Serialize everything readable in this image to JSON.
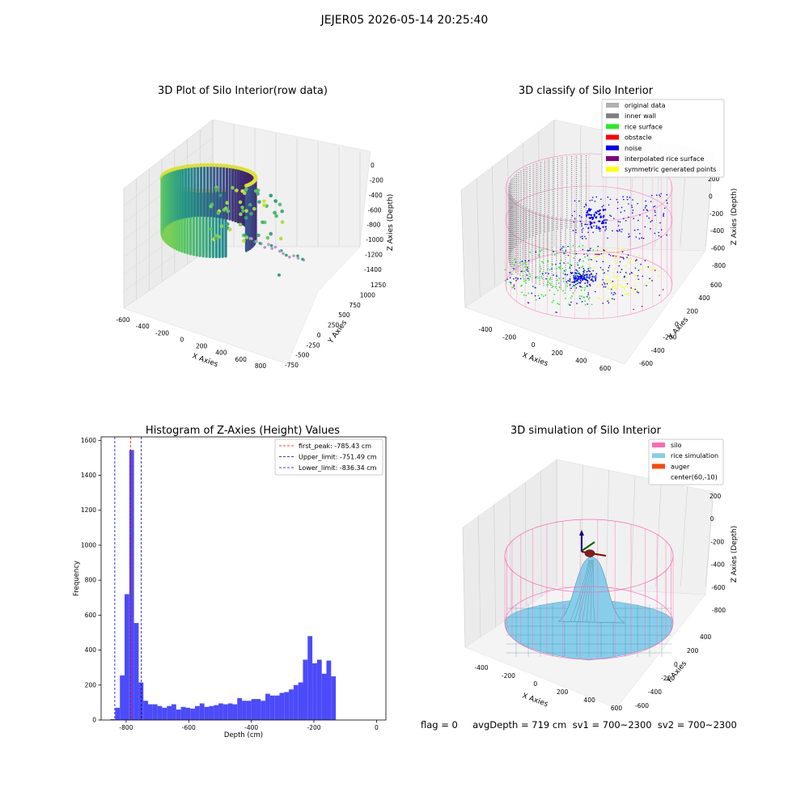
{
  "figure": {
    "suptitle": "JEJER05 2026-05-14 20:25:40",
    "status_line": "flag = 0     avgDepth = 719 cm  sv1 = 700~2300  sv2 = 700~2300"
  },
  "colors": {
    "original": "#b0b0b0",
    "inner_wall": "#808080",
    "rice": "#22ee22",
    "obstacle": "#ff0000",
    "noise": "#0000ee",
    "interp": "#800080",
    "symmetric": "#ffff00",
    "silo": "#ff69b4",
    "rice_sim": "#87ceeb",
    "auger": "#ff4500",
    "hist_bar": "#4b4bfa"
  },
  "chart_data": [
    {
      "type": "scatter",
      "id": "raw3d",
      "title": "3D Plot of Silo Interior(row data)",
      "xlabel": "X Axies",
      "ylabel": "Y Axies",
      "zlabel": "Z Axies (Depth)",
      "xticks": [
        "-600",
        "-400",
        "-200",
        "0",
        "200",
        "400",
        "600",
        "800"
      ],
      "yticks": [
        "-750",
        "-500",
        "-250",
        "0",
        "250",
        "500",
        "750",
        "1000",
        "1250"
      ],
      "zticks": [
        "0",
        "-200",
        "-400",
        "-600",
        "-800",
        "-1000",
        "-1200",
        "-1400"
      ],
      "xlim": [
        -600,
        800
      ],
      "ylim": [
        -750,
        1250
      ],
      "zlim": [
        -1400,
        0
      ],
      "colormap": "viridis"
    },
    {
      "type": "scatter",
      "id": "classify3d",
      "title": "3D classify of Silo Interior",
      "xlabel": "X Axies",
      "ylabel": "Y Axies",
      "zlabel": "Z Axies (Depth)",
      "xticks": [
        "-400",
        "-200",
        "0",
        "200",
        "400",
        "600"
      ],
      "yticks": [
        "-600",
        "-400",
        "-200",
        "0",
        "200",
        "400",
        "600"
      ],
      "zticks": [
        "200",
        "0",
        "-200",
        "-400",
        "-600",
        "-800"
      ],
      "xlim": [
        -600,
        600
      ],
      "ylim": [
        -600,
        600
      ],
      "zlim": [
        -800,
        200
      ],
      "legend_position": "top-right",
      "legend": [
        {
          "label": "original data",
          "color": "#b0b0b0"
        },
        {
          "label": "inner wall",
          "color": "#808080"
        },
        {
          "label": "rice surface",
          "color": "#22ee22"
        },
        {
          "label": "obstacle",
          "color": "#ff0000"
        },
        {
          "label": "noise",
          "color": "#0000ee"
        },
        {
          "label": "interpolated rice surface",
          "color": "#800080"
        },
        {
          "label": "symmetric generated points",
          "color": "#ffff00"
        }
      ]
    },
    {
      "type": "bar",
      "id": "histogram",
      "title": "Histogram of Z-Axies (Height) Values",
      "xlabel": "Depth (cm)",
      "ylabel": "Frequency",
      "xlim": [
        -880,
        30
      ],
      "ylim": [
        0,
        1620
      ],
      "xticks": [
        -800,
        -600,
        -400,
        -200,
        0
      ],
      "yticks": [
        0,
        200,
        400,
        600,
        800,
        1000,
        1200,
        1400,
        1600
      ],
      "bin_start": -850,
      "bin_width": 15,
      "values": [
        5,
        70,
        255,
        720,
        1545,
        555,
        215,
        110,
        90,
        90,
        80,
        70,
        80,
        90,
        60,
        75,
        70,
        65,
        80,
        95,
        75,
        80,
        85,
        95,
        90,
        95,
        90,
        125,
        110,
        110,
        120,
        120,
        110,
        150,
        140,
        140,
        155,
        160,
        175,
        200,
        215,
        345,
        480,
        325,
        345,
        265,
        340,
        250
      ],
      "lines": [
        {
          "label": "first_peak: -785.43 cm",
          "x": -785.43,
          "color": "#ff0000"
        },
        {
          "label": "Upper_limit: -751.49 cm",
          "x": -751.49,
          "color": "#00008b"
        },
        {
          "label": "Lower_limit: -836.34 cm",
          "x": -836.34,
          "color": "#0000ff"
        }
      ],
      "legend_position": "top-right"
    },
    {
      "type": "area",
      "id": "simulation3d",
      "title": "3D simulation of Silo Interior",
      "xlabel": "X Axies",
      "ylabel": "Y Axies",
      "zlabel": "Z Axies (Depth)",
      "xticks": [
        "-400",
        "-200",
        "0",
        "200",
        "400",
        "600"
      ],
      "yticks": [
        "-600",
        "-400",
        "-200",
        "0",
        "200",
        "400"
      ],
      "zticks": [
        "200",
        "0",
        "-200",
        "-400",
        "-600",
        "-800"
      ],
      "xlim": [
        -500,
        650
      ],
      "ylim": [
        -600,
        450
      ],
      "zlim": [
        -800,
        300
      ],
      "legend_position": "top-right",
      "legend": [
        {
          "label": "silo",
          "color": "#ff69b4"
        },
        {
          "label": "rice simulation",
          "color": "#87ceeb"
        },
        {
          "label": "auger",
          "color": "#ff4500"
        },
        {
          "label": "center(60,-10)",
          "color": ""
        }
      ]
    }
  ]
}
